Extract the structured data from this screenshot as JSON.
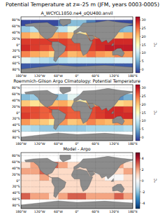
{
  "title": "Potential Temperature at z=-25 m (JFM, years 0003-0005)",
  "chart_data": [
    {
      "type": "heatmap",
      "title": "A_WCYCL1850.ne4_oQU480.anvil",
      "color": "RdYlBu_r",
      "grid": true,
      "xlim": [
        -180,
        180
      ],
      "ylim": [
        -90,
        90
      ],
      "xticks": [
        {
          "value": -180,
          "label": "180°W"
        },
        {
          "value": -120,
          "label": "120°W"
        },
        {
          "value": -60,
          "label": "60°W"
        },
        {
          "value": 0,
          "label": "0°"
        },
        {
          "value": 60,
          "label": "60°E"
        },
        {
          "value": 120,
          "label": "120°E"
        },
        {
          "value": 180,
          "label": "180°E"
        }
      ],
      "yticks": [
        {
          "value": 80,
          "label": "80°N"
        },
        {
          "value": 60,
          "label": "60°N"
        },
        {
          "value": 40,
          "label": "40°N"
        },
        {
          "value": 20,
          "label": "20°N"
        },
        {
          "value": 0,
          "label": "0°"
        },
        {
          "value": -20,
          "label": "20°S"
        },
        {
          "value": -40,
          "label": "40°S"
        },
        {
          "value": -60,
          "label": "60°S"
        },
        {
          "value": -80,
          "label": "80°S"
        }
      ],
      "lon": [
        -165,
        -135,
        -105,
        -75,
        -45,
        -15,
        15,
        45,
        75,
        105,
        135,
        165
      ],
      "lat": [
        70,
        50,
        30,
        10,
        -10,
        -30,
        -50,
        -70
      ],
      "cells": [
        [
          -1,
          -1,
          -1,
          -1,
          2,
          6,
          6,
          2,
          -1,
          -1,
          -1,
          -1
        ],
        [
          7,
          9,
          10,
          8,
          9,
          13,
          12,
          10,
          8,
          6,
          5,
          6
        ],
        [
          22,
          20,
          22,
          22,
          23,
          20,
          18,
          22,
          24,
          20,
          20,
          22
        ],
        [
          28,
          28,
          28,
          28,
          28,
          27,
          27,
          28,
          29,
          29,
          29,
          29
        ],
        [
          29,
          28,
          27,
          26,
          28,
          27,
          27,
          28,
          29,
          30,
          30,
          30
        ],
        [
          24,
          22,
          21,
          19,
          24,
          21,
          22,
          25,
          23,
          22,
          24,
          23
        ],
        [
          12,
          10,
          9,
          8,
          9,
          10,
          10,
          10,
          10,
          10,
          11,
          11
        ],
        [
          0,
          0,
          0,
          0,
          0,
          0,
          0,
          0,
          0,
          0,
          0,
          0
        ]
      ],
      "colorbar": {
        "range": [
          -2,
          32
        ],
        "ticks": [
          0,
          5,
          10,
          15,
          20,
          25,
          30
        ],
        "label": "°C"
      }
    },
    {
      "type": "heatmap",
      "title": "Roemmich-Gilson Argo Climatology: Potential Temperature",
      "color": "RdYlBu_r",
      "grid": true,
      "xlim": [
        -180,
        180
      ],
      "ylim": [
        -90,
        90
      ],
      "xticks": [
        {
          "value": -180,
          "label": "180°W"
        },
        {
          "value": -120,
          "label": "120°W"
        },
        {
          "value": -60,
          "label": "60°W"
        },
        {
          "value": 0,
          "label": "0°"
        },
        {
          "value": 60,
          "label": "60°E"
        },
        {
          "value": 120,
          "label": "120°E"
        },
        {
          "value": 180,
          "label": "180°E"
        }
      ],
      "yticks": [
        {
          "value": 80,
          "label": "80°N"
        },
        {
          "value": 60,
          "label": "60°N"
        },
        {
          "value": 40,
          "label": "40°N"
        },
        {
          "value": 20,
          "label": "20°N"
        },
        {
          "value": 0,
          "label": "0°"
        },
        {
          "value": -20,
          "label": "20°S"
        },
        {
          "value": -40,
          "label": "40°S"
        },
        {
          "value": -60,
          "label": "60°S"
        },
        {
          "value": -80,
          "label": "80°S"
        }
      ],
      "lon": [
        -165,
        -135,
        -105,
        -75,
        -45,
        -15,
        15,
        45,
        75,
        105,
        135,
        165
      ],
      "lat": [
        70,
        50,
        30,
        10,
        -10,
        -30,
        -50,
        -70
      ],
      "cells": [
        [
          null,
          null,
          null,
          null,
          null,
          null,
          null,
          null,
          null,
          null,
          null,
          null
        ],
        [
          6,
          7,
          9,
          5,
          7,
          12,
          11,
          9,
          7,
          4,
          3,
          5
        ],
        [
          20,
          18,
          19,
          21,
          22,
          19,
          17,
          21,
          24,
          20,
          19,
          20
        ],
        [
          27,
          27,
          26,
          27,
          27,
          26,
          26,
          27,
          28,
          29,
          29,
          28
        ],
        [
          28,
          27,
          26,
          25,
          27,
          26,
          26,
          27,
          28,
          29,
          29,
          29
        ],
        [
          23,
          21,
          20,
          18,
          23,
          20,
          21,
          24,
          22,
          21,
          23,
          22
        ],
        [
          9,
          8,
          7,
          7,
          7,
          7,
          7,
          8,
          8,
          8,
          8,
          9
        ],
        [
          null,
          null,
          null,
          null,
          null,
          null,
          null,
          null,
          null,
          null,
          null,
          null
        ]
      ],
      "colorbar": {
        "range": [
          -2,
          32
        ],
        "ticks": [
          0,
          5,
          10,
          15,
          20,
          25,
          30
        ],
        "label": "°C"
      }
    },
    {
      "type": "heatmap",
      "title": "Model - Argo",
      "color": "RdBu_r",
      "grid": true,
      "xlim": [
        -180,
        180
      ],
      "ylim": [
        -90,
        90
      ],
      "xticks": [
        {
          "value": -180,
          "label": "180°W"
        },
        {
          "value": -120,
          "label": "120°W"
        },
        {
          "value": -60,
          "label": "60°W"
        },
        {
          "value": 0,
          "label": "0°"
        },
        {
          "value": 60,
          "label": "60°E"
        },
        {
          "value": 120,
          "label": "120°E"
        },
        {
          "value": 180,
          "label": "180°E"
        }
      ],
      "yticks": [
        {
          "value": 80,
          "label": "80°N"
        },
        {
          "value": 60,
          "label": "60°N"
        },
        {
          "value": 40,
          "label": "40°N"
        },
        {
          "value": 20,
          "label": "20°N"
        },
        {
          "value": 0,
          "label": "0°"
        },
        {
          "value": -20,
          "label": "20°S"
        },
        {
          "value": -40,
          "label": "40°S"
        },
        {
          "value": -60,
          "label": "60°S"
        },
        {
          "value": -80,
          "label": "80°S"
        }
      ],
      "lon": [
        -165,
        -135,
        -105,
        -75,
        -45,
        -15,
        15,
        45,
        75,
        105,
        135,
        165
      ],
      "lat": [
        70,
        50,
        30,
        10,
        -10,
        -30,
        -50,
        -70
      ],
      "cells": [
        [
          null,
          null,
          null,
          null,
          null,
          null,
          null,
          null,
          null,
          null,
          null,
          null
        ],
        [
          1,
          2,
          1,
          3,
          2,
          1,
          1,
          1,
          1,
          2,
          2,
          1
        ],
        [
          2,
          2,
          3,
          1,
          1,
          1,
          1,
          1,
          0,
          0,
          1,
          2
        ],
        [
          1,
          1,
          2,
          1,
          1,
          1,
          1,
          1,
          1,
          0,
          0,
          1
        ],
        [
          1,
          1,
          1,
          1,
          1,
          1,
          1,
          1,
          1,
          1,
          1,
          1
        ],
        [
          1,
          1,
          1,
          1,
          1,
          1,
          1,
          1,
          1,
          1,
          1,
          1
        ],
        [
          3,
          2,
          2,
          1,
          2,
          3,
          3,
          2,
          2,
          2,
          3,
          2
        ],
        [
          null,
          null,
          null,
          null,
          null,
          null,
          null,
          null,
          null,
          null,
          null,
          null
        ]
      ],
      "colorbar": {
        "range": [
          -5,
          5
        ],
        "ticks": [
          -4,
          -2,
          0,
          2,
          4
        ],
        "label": "°C"
      }
    }
  ]
}
